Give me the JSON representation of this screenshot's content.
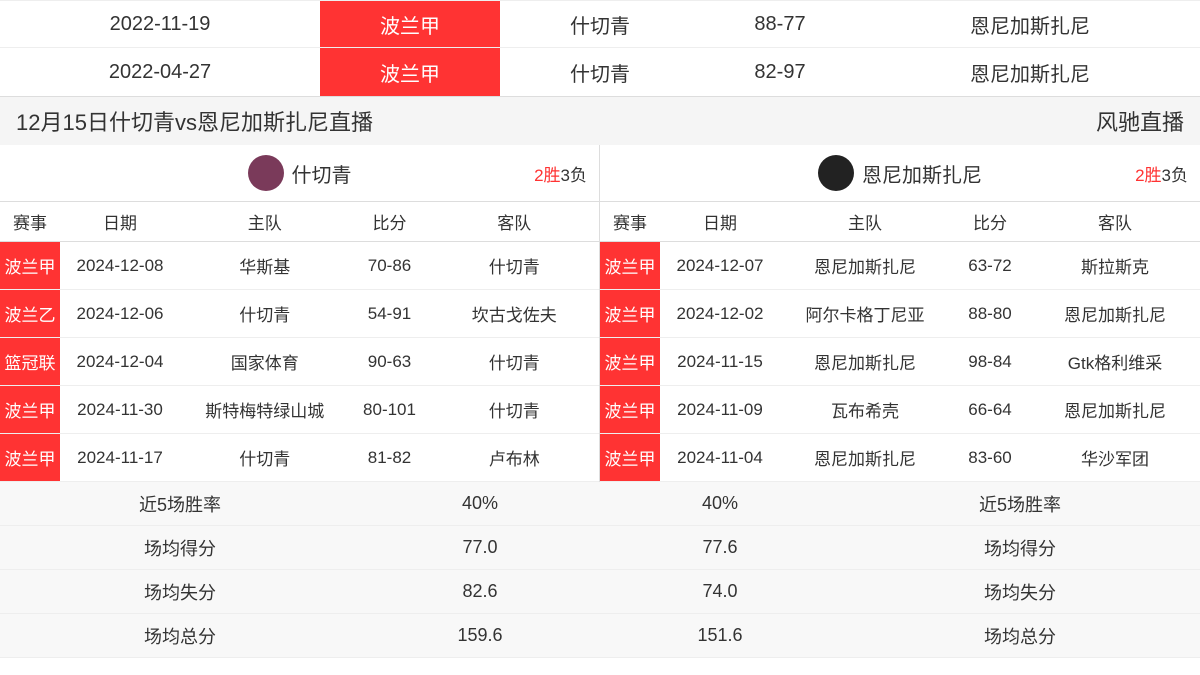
{
  "top_matches": [
    {
      "date": "2022-11-19",
      "league": "波兰甲",
      "home": "什切青",
      "score": "88-77",
      "away": "恩尼加斯扎尼"
    },
    {
      "date": "2022-04-27",
      "league": "波兰甲",
      "home": "什切青",
      "score": "82-97",
      "away": "恩尼加斯扎尼"
    }
  ],
  "title_bar": {
    "left": "12月15日什切青vs恩尼加斯扎尼直播",
    "right": "风驰直播"
  },
  "col_headers": [
    "赛事",
    "日期",
    "主队",
    "比分",
    "客队"
  ],
  "teams": {
    "left": {
      "name": "什切青",
      "logo_bg": "#7a3a5a",
      "record_w": "2胜",
      "record_l": "3负",
      "matches": [
        {
          "league": "波兰甲",
          "date": "2024-12-08",
          "home": "华斯基",
          "score": "70-86",
          "away": "什切青"
        },
        {
          "league": "波兰乙",
          "date": "2024-12-06",
          "home": "什切青",
          "score": "54-91",
          "away": "坎古戈佐夫"
        },
        {
          "league": "篮冠联",
          "date": "2024-12-04",
          "home": "国家体育",
          "score": "90-63",
          "away": "什切青"
        },
        {
          "league": "波兰甲",
          "date": "2024-11-30",
          "home": "斯特梅特绿山城",
          "score": "80-101",
          "away": "什切青"
        },
        {
          "league": "波兰甲",
          "date": "2024-11-17",
          "home": "什切青",
          "score": "81-82",
          "away": "卢布林"
        }
      ]
    },
    "right": {
      "name": "恩尼加斯扎尼",
      "logo_bg": "#222222",
      "record_w": "2胜",
      "record_l": "3负",
      "matches": [
        {
          "league": "波兰甲",
          "date": "2024-12-07",
          "home": "恩尼加斯扎尼",
          "score": "63-72",
          "away": "斯拉斯克"
        },
        {
          "league": "波兰甲",
          "date": "2024-12-02",
          "home": "阿尔卡格丁尼亚",
          "score": "88-80",
          "away": "恩尼加斯扎尼"
        },
        {
          "league": "波兰甲",
          "date": "2024-11-15",
          "home": "恩尼加斯扎尼",
          "score": "98-84",
          "away": "Gtk格利维采"
        },
        {
          "league": "波兰甲",
          "date": "2024-11-09",
          "home": "瓦布希壳",
          "score": "66-64",
          "away": "恩尼加斯扎尼"
        },
        {
          "league": "波兰甲",
          "date": "2024-11-04",
          "home": "恩尼加斯扎尼",
          "score": "83-60",
          "away": "华沙军团"
        }
      ]
    }
  },
  "stats": {
    "labels": {
      "winrate": "近5场胜率",
      "points_for": "场均得分",
      "points_against": "场均失分",
      "points_total": "场均总分"
    },
    "left": {
      "winrate": "40%",
      "points_for": "77.0",
      "points_against": "82.6",
      "points_total": "159.6"
    },
    "right": {
      "winrate": "40%",
      "points_for": "77.6",
      "points_against": "74.0",
      "points_total": "151.6"
    }
  }
}
